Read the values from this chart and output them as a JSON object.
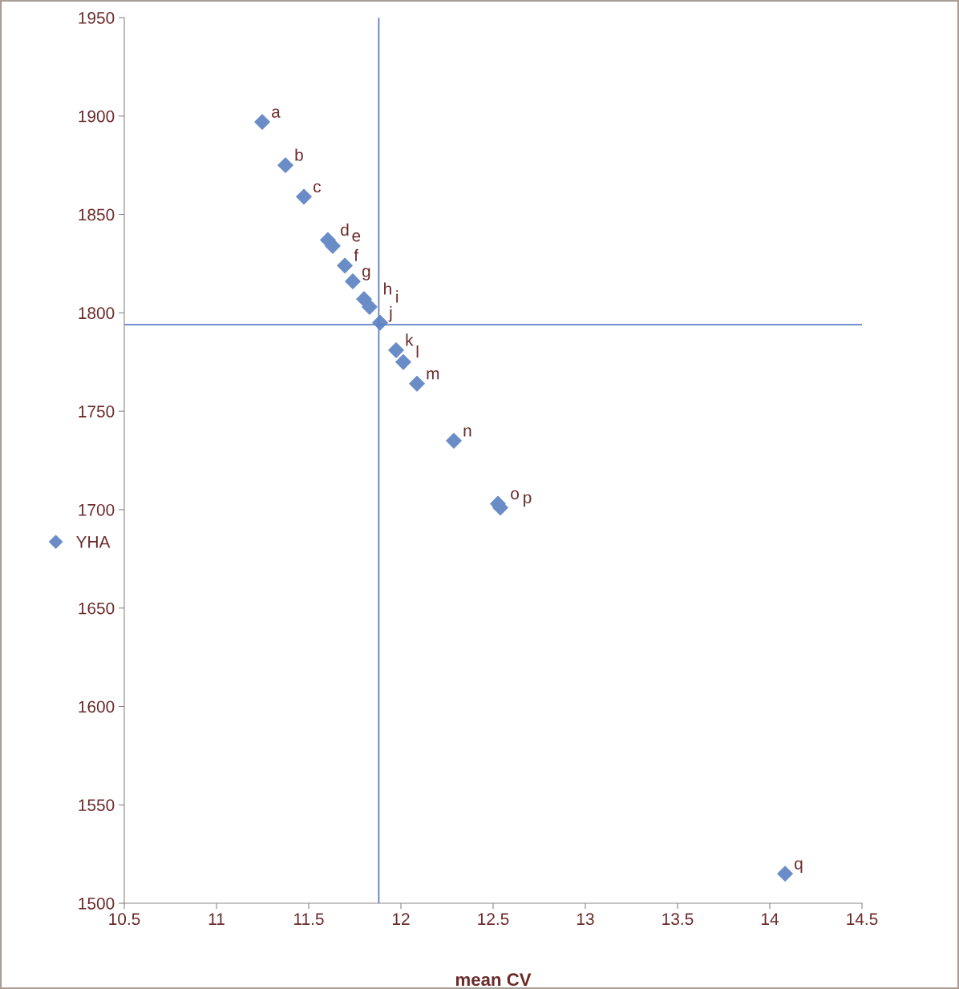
{
  "chart_data": {
    "type": "scatter",
    "xlabel": "mean CV",
    "xlim": [
      10.5,
      14.5
    ],
    "xticks": [
      10.5,
      11,
      11.5,
      12,
      12.5,
      13,
      13.5,
      14,
      14.5
    ],
    "ylim": [
      1500,
      1950
    ],
    "yticks": [
      1500,
      1550,
      1600,
      1650,
      1700,
      1750,
      1800,
      1850,
      1900,
      1950
    ],
    "series": [
      {
        "name": "YHA",
        "color": "#6a8cc7",
        "x": [
          11.248,
          11.374,
          11.474,
          11.604,
          11.63,
          11.696,
          11.739,
          11.8,
          11.83,
          11.887,
          11.974,
          12.013,
          12.087,
          12.287,
          12.526,
          12.539,
          14.083
        ],
        "values": [
          1897,
          1875,
          1859,
          1837,
          1834,
          1824,
          1816,
          1807,
          1803,
          1795,
          1781,
          1775,
          1764,
          1735,
          1703,
          1701,
          1515
        ]
      }
    ],
    "annotations": [
      {
        "text": "a",
        "x": 11.248,
        "y": 1897
      },
      {
        "text": "b",
        "x": 11.374,
        "y": 1875
      },
      {
        "text": "c",
        "x": 11.474,
        "y": 1859
      },
      {
        "text": "d",
        "x": 11.604,
        "y": 1837
      },
      {
        "text": "e",
        "x": 11.63,
        "y": 1834
      },
      {
        "text": "f",
        "x": 11.696,
        "y": 1824
      },
      {
        "text": "g",
        "x": 11.739,
        "y": 1816
      },
      {
        "text": "h",
        "x": 11.8,
        "y": 1807
      },
      {
        "text": "i",
        "x": 11.83,
        "y": 1803
      },
      {
        "text": "j",
        "x": 11.887,
        "y": 1795
      },
      {
        "text": "k",
        "x": 11.974,
        "y": 1781
      },
      {
        "text": "l",
        "x": 12.013,
        "y": 1775
      },
      {
        "text": "m",
        "x": 12.087,
        "y": 1764
      },
      {
        "text": "n",
        "x": 12.287,
        "y": 1735
      },
      {
        "text": "o",
        "x": 12.526,
        "y": 1703
      },
      {
        "text": "p",
        "x": 12.539,
        "y": 1701
      },
      {
        "text": "q",
        "x": 14.083,
        "y": 1515
      }
    ],
    "ref_lines": [
      {
        "axis": "x",
        "value": 11.88,
        "color": "#5b7fc4"
      },
      {
        "axis": "y",
        "value": 1794,
        "color": "#5b7fc4"
      }
    ],
    "marker": "diamond",
    "grid": false,
    "legend": "left"
  }
}
